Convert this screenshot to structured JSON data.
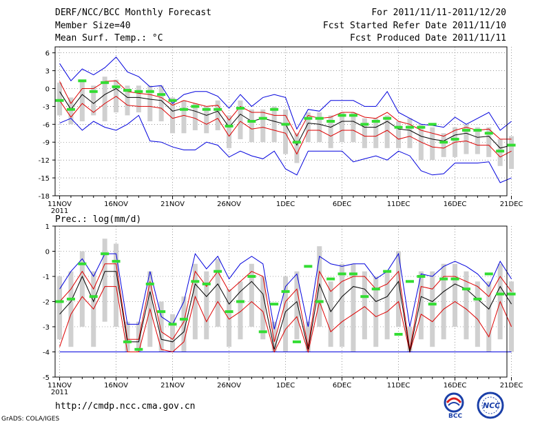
{
  "header": {
    "title": "DERF/NCC/BCC Monthly Forecast",
    "member_size": "Member Size=40",
    "variable": "Mean Surf. Temp.: °C",
    "forecast_period": "For 2011/11/11-2011/12/20",
    "fcst_started": "Fcst Started Refer Date 2011/11/10",
    "fcst_produced": "Fcst Produced Date 2011/11/11"
  },
  "footer": {
    "url": "http://cmdp.ncc.cma.gov.cn",
    "credit": "GrADS: COLA/IGES",
    "logo_left_text": "BCC",
    "logo_right_text": "NCC"
  },
  "colors": {
    "max_min": "#0000dd",
    "spread": "#dd0000",
    "mean": "#000000",
    "median": "#33dd33",
    "box": "#d0d0d0"
  },
  "chart_data": [
    {
      "type": "line",
      "id": "temperature",
      "title": "Mean Surf. Temp.: °C",
      "ylabel": "°C",
      "ylim": [
        -18,
        7
      ],
      "yticks": [
        6,
        3,
        0,
        -3,
        -6,
        -9,
        -12,
        -15,
        -18
      ],
      "xticks": [
        {
          "day": 0,
          "label": "11NOV",
          "sub": "2011"
        },
        {
          "day": 5,
          "label": "16NOV"
        },
        {
          "day": 10,
          "label": "21NOV"
        },
        {
          "day": 15,
          "label": "26NOV"
        },
        {
          "day": 20,
          "label": "1DEC"
        },
        {
          "day": 25,
          "label": "6DEC"
        },
        {
          "day": 30,
          "label": "11DEC"
        },
        {
          "day": 35,
          "label": "16DEC"
        },
        {
          "day": 40,
          "label": "21DEC"
        }
      ],
      "series": [
        {
          "name": "max",
          "values": [
            4.2,
            1.3,
            3.3,
            2.3,
            3.5,
            5.3,
            2.8,
            2.0,
            0.3,
            0.5,
            -2.5,
            -1.0,
            -0.5,
            -0.5,
            -1.3,
            -3.3,
            -1.0,
            -3.0,
            -1.5,
            -1.0,
            -1.5,
            -6.8,
            -3.5,
            -3.8,
            -2.0,
            -2.0,
            -2.0,
            -3.0,
            -3.0,
            -0.5,
            -4.0,
            -5.0,
            -6.0,
            -6.2,
            -6.5,
            -4.8,
            -6.0,
            -5.0,
            -4.0,
            -7.0,
            -5.5
          ]
        },
        {
          "name": "spread_upper",
          "values": [
            1.2,
            -2.5,
            0.0,
            0.0,
            1.2,
            1.3,
            -0.5,
            -0.8,
            -1.0,
            -1.5,
            -2.8,
            -2.0,
            -2.5,
            -3.0,
            -2.8,
            -5.3,
            -3.0,
            -4.0,
            -4.0,
            -4.5,
            -4.5,
            -8.0,
            -4.5,
            -5.0,
            -4.8,
            -4.0,
            -4.0,
            -4.8,
            -5.0,
            -4.0,
            -5.5,
            -6.0,
            -7.0,
            -7.5,
            -8.0,
            -7.0,
            -6.5,
            -7.0,
            -6.8,
            -8.5,
            -8.5
          ]
        },
        {
          "name": "mean",
          "values": [
            -0.5,
            -3.5,
            -1.0,
            -2.5,
            -1.0,
            0.0,
            -1.5,
            -1.5,
            -1.8,
            -2.0,
            -3.8,
            -3.3,
            -3.8,
            -4.5,
            -3.8,
            -6.5,
            -4.3,
            -5.5,
            -5.0,
            -5.5,
            -6.0,
            -9.5,
            -5.8,
            -6.0,
            -6.5,
            -5.5,
            -5.5,
            -6.5,
            -6.5,
            -5.5,
            -6.8,
            -7.0,
            -8.0,
            -8.5,
            -8.8,
            -7.8,
            -7.5,
            -8.2,
            -8.0,
            -10.0,
            -9.5
          ]
        },
        {
          "name": "spread_lower",
          "values": [
            -2.0,
            -4.8,
            -2.5,
            -4.0,
            -2.5,
            -1.3,
            -2.8,
            -3.0,
            -3.0,
            -3.3,
            -5.0,
            -4.5,
            -5.0,
            -6.0,
            -5.0,
            -8.0,
            -5.5,
            -6.8,
            -6.5,
            -7.0,
            -7.5,
            -11.0,
            -7.0,
            -7.0,
            -8.0,
            -7.0,
            -7.0,
            -8.0,
            -8.0,
            -7.0,
            -8.5,
            -8.0,
            -9.0,
            -9.8,
            -10.0,
            -9.0,
            -8.8,
            -9.5,
            -9.5,
            -11.5,
            -10.5
          ]
        },
        {
          "name": "min",
          "values": [
            -5.8,
            -5.0,
            -7.0,
            -5.5,
            -6.5,
            -7.0,
            -6.0,
            -4.5,
            -8.8,
            -9.0,
            -9.8,
            -10.3,
            -10.3,
            -9.0,
            -9.5,
            -11.5,
            -10.5,
            -11.3,
            -11.8,
            -10.5,
            -13.5,
            -14.5,
            -10.5,
            -10.5,
            -10.5,
            -10.5,
            -12.3,
            -11.8,
            -11.3,
            -12.0,
            -10.5,
            -11.3,
            -13.8,
            -14.5,
            -14.3,
            -12.5,
            -12.5,
            -12.5,
            -12.3,
            -15.8,
            -15.0
          ]
        },
        {
          "name": "median",
          "values": [
            -2.0,
            -3.5,
            1.3,
            -0.5,
            1.0,
            0.3,
            -0.3,
            -0.5,
            -0.5,
            -1.0,
            -2.0,
            -3.5,
            -3.0,
            -3.5,
            -3.5,
            -6.3,
            -3.3,
            -5.5,
            -5.0,
            -3.5,
            -6.0,
            -9.0,
            -5.0,
            -5.0,
            -5.5,
            -4.5,
            -4.5,
            -6.0,
            -5.5,
            -5.0,
            -6.5,
            -6.5,
            -6.5,
            -6.0,
            -9.0,
            -8.5,
            -7.0,
            -7.0,
            -7.5,
            -10.5,
            -9.5
          ]
        },
        {
          "name": "box_high",
          "values": [
            1.0,
            -1.5,
            1.5,
            0.5,
            2.0,
            1.5,
            0.5,
            0.5,
            0.5,
            0.5,
            -1.5,
            -2.0,
            -2.5,
            -3.0,
            -2.0,
            -4.5,
            -2.0,
            -3.5,
            -3.5,
            -3.0,
            -3.5,
            -7.5,
            -4.0,
            -4.0,
            -4.5,
            -4.0,
            -4.0,
            -5.0,
            -5.0,
            -4.5,
            -5.5,
            -5.0,
            -6.0,
            -6.5,
            -7.5,
            -6.5,
            -6.0,
            -6.5,
            -6.5,
            -8.5,
            -8.0
          ]
        },
        {
          "name": "box_low",
          "values": [
            -4.5,
            -6.0,
            -5.5,
            -4.5,
            -5.5,
            -4.0,
            -4.5,
            -4.0,
            -5.5,
            -5.5,
            -7.5,
            -7.5,
            -7.0,
            -7.5,
            -7.0,
            -10.0,
            -8.5,
            -9.0,
            -9.0,
            -9.0,
            -11.0,
            -12.5,
            -9.0,
            -9.0,
            -10.0,
            -9.0,
            -9.0,
            -10.0,
            -10.0,
            -10.0,
            -10.0,
            -10.0,
            -12.0,
            -12.0,
            -11.5,
            -11.5,
            -11.0,
            -11.0,
            -11.5,
            -13.0,
            -13.5
          ]
        }
      ]
    },
    {
      "type": "line",
      "id": "precipitation",
      "title": "Prec.: log(mm/d)",
      "ylabel": "log(mm/d)",
      "ylim": [
        -5,
        1
      ],
      "yticks": [
        1,
        0,
        -1,
        -2,
        -3,
        -4,
        -5
      ],
      "baseline": -4,
      "xticks": [
        {
          "day": 0,
          "label": "11NOV",
          "sub": "2011"
        },
        {
          "day": 5,
          "label": "16NOV"
        },
        {
          "day": 10,
          "label": "21NOV"
        },
        {
          "day": 15,
          "label": "26NOV"
        },
        {
          "day": 20,
          "label": "1DEC"
        },
        {
          "day": 25,
          "label": "6DEC"
        },
        {
          "day": 30,
          "label": "11DEC"
        },
        {
          "day": 35,
          "label": "16DEC"
        },
        {
          "day": 40,
          "label": "21DEC"
        }
      ],
      "series": [
        {
          "name": "max",
          "values": [
            -1.5,
            -0.8,
            -0.3,
            -1.0,
            -0.1,
            -0.1,
            -2.9,
            -2.9,
            -0.8,
            -2.6,
            -2.9,
            -2.0,
            -0.1,
            -0.7,
            -0.2,
            -1.1,
            -0.5,
            -0.2,
            -0.5,
            -3.1,
            -1.4,
            -0.9,
            -3.0,
            -0.2,
            -0.5,
            -0.6,
            -0.5,
            -0.5,
            -1.1,
            -0.8,
            -0.1,
            -3.0,
            -0.9,
            -1.0,
            -0.6,
            -0.4,
            -0.6,
            -0.9,
            -1.4,
            -0.4,
            -1.1
          ]
        },
        {
          "name": "spread_upper",
          "values": [
            -2.0,
            -1.5,
            -0.8,
            -1.5,
            -0.5,
            -0.5,
            -3.5,
            -3.5,
            -1.2,
            -3.2,
            -3.5,
            -2.8,
            -0.8,
            -1.4,
            -0.8,
            -1.6,
            -1.2,
            -0.8,
            -1.0,
            -3.6,
            -2.0,
            -1.5,
            -3.8,
            -0.8,
            -1.6,
            -1.2,
            -1.0,
            -1.0,
            -1.5,
            -1.3,
            -0.8,
            -3.9,
            -1.4,
            -1.5,
            -1.0,
            -1.0,
            -1.2,
            -1.4,
            -1.8,
            -1.0,
            -1.6
          ]
        },
        {
          "name": "mean",
          "values": [
            -2.5,
            -2.0,
            -1.0,
            -2.0,
            -0.8,
            -0.8,
            -3.6,
            -3.6,
            -1.6,
            -3.5,
            -3.6,
            -3.2,
            -1.3,
            -1.8,
            -1.3,
            -2.1,
            -1.6,
            -1.2,
            -1.7,
            -3.9,
            -2.4,
            -2.0,
            -3.9,
            -1.3,
            -2.4,
            -1.8,
            -1.4,
            -1.5,
            -2.0,
            -1.8,
            -1.2,
            -4.0,
            -1.8,
            -2.0,
            -1.6,
            -1.3,
            -1.5,
            -1.9,
            -2.3,
            -1.4,
            -2.1
          ]
        },
        {
          "name": "spread_lower",
          "values": [
            -3.8,
            -2.5,
            -1.8,
            -2.3,
            -1.4,
            -1.4,
            -4.0,
            -4.0,
            -2.3,
            -3.9,
            -4.0,
            -3.6,
            -1.8,
            -2.8,
            -2.0,
            -2.7,
            -2.4,
            -2.0,
            -2.4,
            -4.0,
            -3.1,
            -2.6,
            -4.0,
            -2.0,
            -3.2,
            -2.8,
            -2.5,
            -2.2,
            -2.6,
            -2.4,
            -2.0,
            -4.0,
            -2.5,
            -2.8,
            -2.3,
            -2.0,
            -2.3,
            -2.7,
            -3.4,
            -2.0,
            -3.0
          ]
        },
        {
          "name": "min",
          "values": [
            -4.0,
            -4.0,
            -4.0,
            -4.0,
            -4.0,
            -4.0,
            -4.0,
            -4.0,
            -4.0,
            -4.0,
            -4.0,
            -4.0,
            -4.0,
            -4.0,
            -4.0,
            -4.0,
            -4.0,
            -4.0,
            -4.0,
            -4.0,
            -4.0,
            -4.0,
            -4.0,
            -4.0,
            -4.0,
            -4.0,
            -4.0,
            -4.0,
            -4.0,
            -4.0,
            -4.0,
            -4.0,
            -4.0,
            -4.0,
            -4.0,
            -4.0,
            -4.0,
            -4.0,
            -4.0,
            -4.0,
            -4.0
          ]
        },
        {
          "name": "median",
          "values": [
            -2.0,
            -1.9,
            -0.5,
            -1.8,
            -0.1,
            -0.4,
            -3.6,
            -3.9,
            -1.3,
            -2.4,
            -2.9,
            -2.7,
            -1.2,
            -1.3,
            -0.8,
            -2.4,
            -2.0,
            -1.0,
            -3.2,
            -2.1,
            -1.6,
            -3.6,
            -0.6,
            -2.0,
            -1.1,
            -0.9,
            -0.9,
            -1.8,
            -1.5,
            -0.8,
            -3.3,
            -1.2,
            -1.0,
            -2.1,
            -1.1,
            -1.1,
            -1.5,
            -1.9,
            -0.9,
            -1.7,
            -1.7
          ]
        },
        {
          "name": "box_high",
          "values": [
            -1.0,
            -0.8,
            0.0,
            -0.8,
            0.5,
            0.3,
            -2.8,
            -2.8,
            -0.8,
            -2.0,
            -2.5,
            -1.8,
            -0.5,
            -0.8,
            -0.3,
            -1.5,
            -1.2,
            -0.5,
            -1.0,
            -2.8,
            -1.0,
            -0.8,
            -2.8,
            0.2,
            -1.2,
            -0.5,
            -0.5,
            -0.8,
            -1.0,
            -0.8,
            0.0,
            -3.0,
            -0.8,
            -0.8,
            -0.5,
            -0.5,
            -0.8,
            -1.2,
            -1.2,
            -0.5,
            -1.2
          ]
        },
        {
          "name": "box_low",
          "values": [
            -3.5,
            -3.8,
            -3.0,
            -3.8,
            -2.8,
            -3.0,
            -4.0,
            -4.0,
            -3.8,
            -4.0,
            -4.0,
            -4.0,
            -3.5,
            -3.5,
            -3.0,
            -3.8,
            -3.5,
            -3.0,
            -3.5,
            -4.0,
            -4.0,
            -3.5,
            -4.0,
            -3.0,
            -3.8,
            -3.8,
            -4.0,
            -3.5,
            -3.8,
            -3.5,
            -3.0,
            -4.0,
            -3.5,
            -3.8,
            -3.5,
            -3.0,
            -3.5,
            -3.8,
            -4.0,
            -3.5,
            -4.0
          ]
        }
      ]
    }
  ]
}
